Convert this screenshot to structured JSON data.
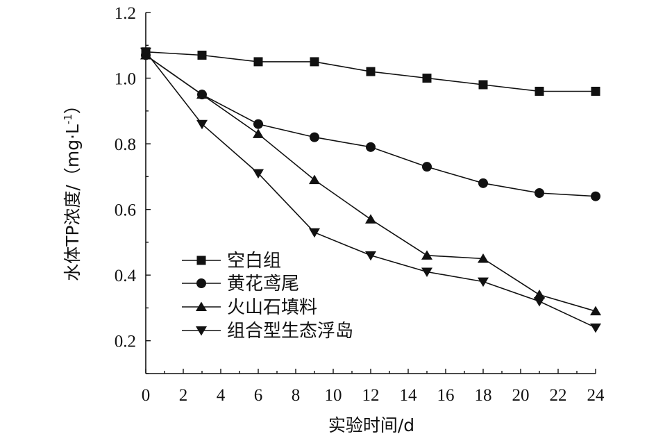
{
  "chart_data": {
    "type": "line",
    "title": "",
    "xlabel": "实验时间/d",
    "ylabel_main": "水体TP浓度/（mg·L",
    "ylabel_sup": "-1",
    "ylabel_close": "）",
    "xlim": [
      0,
      24
    ],
    "ylim": [
      0.1,
      1.2
    ],
    "xticks": [
      0,
      2,
      4,
      6,
      8,
      10,
      12,
      14,
      16,
      18,
      20,
      22,
      24
    ],
    "yticks": [
      0.2,
      0.4,
      0.6,
      0.8,
      1.0,
      1.2
    ],
    "ytick_labels": [
      "0.2",
      "0.4",
      "0.6",
      "0.8",
      "1.0",
      "1.2"
    ],
    "grid": false,
    "legend_position": "bottom-left",
    "x": [
      0,
      3,
      6,
      9,
      12,
      15,
      18,
      21,
      24
    ],
    "series": [
      {
        "name": "空白组",
        "marker": "square",
        "values": [
          1.08,
          1.07,
          1.05,
          1.05,
          1.02,
          1.0,
          0.98,
          0.96,
          0.96
        ]
      },
      {
        "name": "黄花鸢尾",
        "marker": "circle",
        "values": [
          1.07,
          0.95,
          0.86,
          0.82,
          0.79,
          0.73,
          0.68,
          0.65,
          0.64
        ]
      },
      {
        "name": "火山石填料",
        "marker": "triangle-up",
        "values": [
          1.07,
          0.95,
          0.83,
          0.69,
          0.57,
          0.46,
          0.45,
          0.34,
          0.29
        ]
      },
      {
        "name": "组合型生态浮岛",
        "marker": "triangle-down",
        "values": [
          1.08,
          0.86,
          0.71,
          0.53,
          0.46,
          0.41,
          0.38,
          0.32,
          0.24
        ]
      }
    ]
  }
}
